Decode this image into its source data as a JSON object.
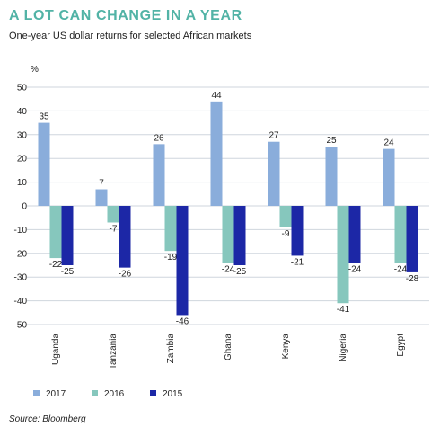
{
  "header": {
    "title": "A LOT CAN CHANGE IN A YEAR",
    "subtitle": "One-year US dollar returns for selected African markets"
  },
  "footer": {
    "source": "Source: Bloomberg"
  },
  "colors": {
    "title": "#52b3a6",
    "s2017": "#8aaddb",
    "s2016": "#86c7bd",
    "s2015": "#1c27a6",
    "grid": "#cfd6dd"
  },
  "chart_data": {
    "type": "bar",
    "ylabel": "%",
    "ylim": [
      -50,
      50
    ],
    "yticks": [
      50,
      40,
      30,
      20,
      10,
      0,
      -10,
      -20,
      -30,
      -40,
      -50
    ],
    "grid": true,
    "legend_position": "bottom-left",
    "categories": [
      "Uganda",
      "Tanzania",
      "Zambia",
      "Ghana",
      "Kenya",
      "Nigeria",
      "Egypt"
    ],
    "series": [
      {
        "name": "2017",
        "values": [
          35,
          7,
          26,
          44,
          27,
          25,
          24
        ],
        "labels": [
          "35",
          "7",
          "26",
          "44",
          "27",
          "25",
          "24"
        ]
      },
      {
        "name": "2016",
        "values": [
          -22,
          -7,
          -19,
          -24,
          -9,
          -41,
          -24
        ],
        "labels": [
          "-22",
          "-7",
          "-19",
          "-24",
          "-9",
          "-41",
          "-24"
        ]
      },
      {
        "name": "2015",
        "values": [
          -25,
          -26,
          -46,
          -25,
          -21,
          -24,
          -28
        ],
        "labels": [
          "-25",
          "-26",
          "-46",
          "-25",
          "-21",
          "-24",
          "-28"
        ]
      }
    ]
  }
}
